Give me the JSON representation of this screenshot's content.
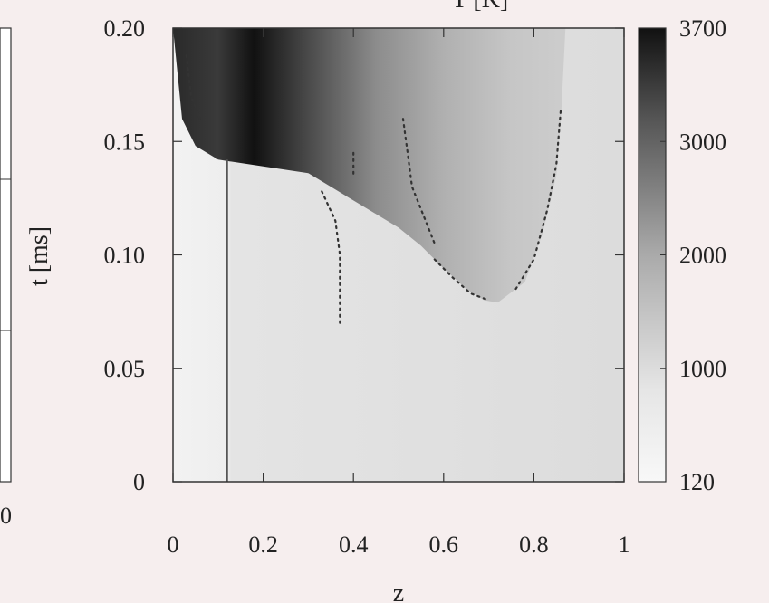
{
  "left_panel_fragment": {
    "x_tick_label": "0"
  },
  "chart_data": {
    "type": "heatmap",
    "title": "T [K]",
    "xlabel": "z",
    "ylabel": "t [ms]",
    "xlim": [
      0,
      1
    ],
    "ylim": [
      0,
      0.2
    ],
    "x_ticks": [
      "0",
      "0.2",
      "0.4",
      "0.6",
      "0.8",
      "1"
    ],
    "y_ticks": [
      "0",
      "0.05",
      "0.10",
      "0.15",
      "0.20"
    ],
    "colorbar": {
      "label": "T [K]",
      "range": [
        120,
        3700
      ],
      "ticks": [
        "120",
        "1000",
        "2000",
        "3000",
        "3700"
      ],
      "colormap": "grayscale (white = low, black = high)"
    },
    "vertical_line": {
      "z": 0.12,
      "color": "#555555"
    },
    "hot_front_t": [
      {
        "z": 0.0,
        "t": 0.2
      },
      {
        "z": 0.02,
        "t": 0.16
      },
      {
        "z": 0.05,
        "t": 0.148
      },
      {
        "z": 0.1,
        "t": 0.142
      },
      {
        "z": 0.2,
        "t": 0.139
      },
      {
        "z": 0.3,
        "t": 0.136
      },
      {
        "z": 0.35,
        "t": 0.13
      },
      {
        "z": 0.4,
        "t": 0.124
      },
      {
        "z": 0.45,
        "t": 0.118
      },
      {
        "z": 0.5,
        "t": 0.112
      },
      {
        "z": 0.55,
        "t": 0.104
      },
      {
        "z": 0.6,
        "t": 0.094
      },
      {
        "z": 0.65,
        "t": 0.085
      },
      {
        "z": 0.69,
        "t": 0.08
      },
      {
        "z": 0.72,
        "t": 0.079
      },
      {
        "z": 0.78,
        "t": 0.088
      },
      {
        "z": 0.82,
        "t": 0.11
      },
      {
        "z": 0.85,
        "t": 0.135
      },
      {
        "z": 0.86,
        "t": 0.16
      },
      {
        "z": 0.87,
        "t": 0.2
      }
    ],
    "dotted_traces": [
      [
        {
          "z": 0.03,
          "t": 0.188
        },
        {
          "z": 0.04,
          "t": 0.17
        },
        {
          "z": 0.06,
          "t": 0.16
        }
      ],
      [
        {
          "z": 0.33,
          "t": 0.128
        },
        {
          "z": 0.36,
          "t": 0.115
        },
        {
          "z": 0.37,
          "t": 0.1
        },
        {
          "z": 0.37,
          "t": 0.085
        },
        {
          "z": 0.37,
          "t": 0.07
        }
      ],
      [
        {
          "z": 0.4,
          "t": 0.145
        },
        {
          "z": 0.4,
          "t": 0.135
        }
      ],
      [
        {
          "z": 0.51,
          "t": 0.16
        },
        {
          "z": 0.52,
          "t": 0.145
        },
        {
          "z": 0.53,
          "t": 0.13
        },
        {
          "z": 0.56,
          "t": 0.115
        },
        {
          "z": 0.58,
          "t": 0.105
        }
      ],
      [
        {
          "z": 0.58,
          "t": 0.098
        },
        {
          "z": 0.62,
          "t": 0.09
        },
        {
          "z": 0.66,
          "t": 0.083
        },
        {
          "z": 0.7,
          "t": 0.08
        }
      ],
      [
        {
          "z": 0.76,
          "t": 0.085
        },
        {
          "z": 0.8,
          "t": 0.098
        },
        {
          "z": 0.83,
          "t": 0.12
        },
        {
          "z": 0.85,
          "t": 0.14
        },
        {
          "z": 0.86,
          "t": 0.165
        }
      ]
    ]
  }
}
